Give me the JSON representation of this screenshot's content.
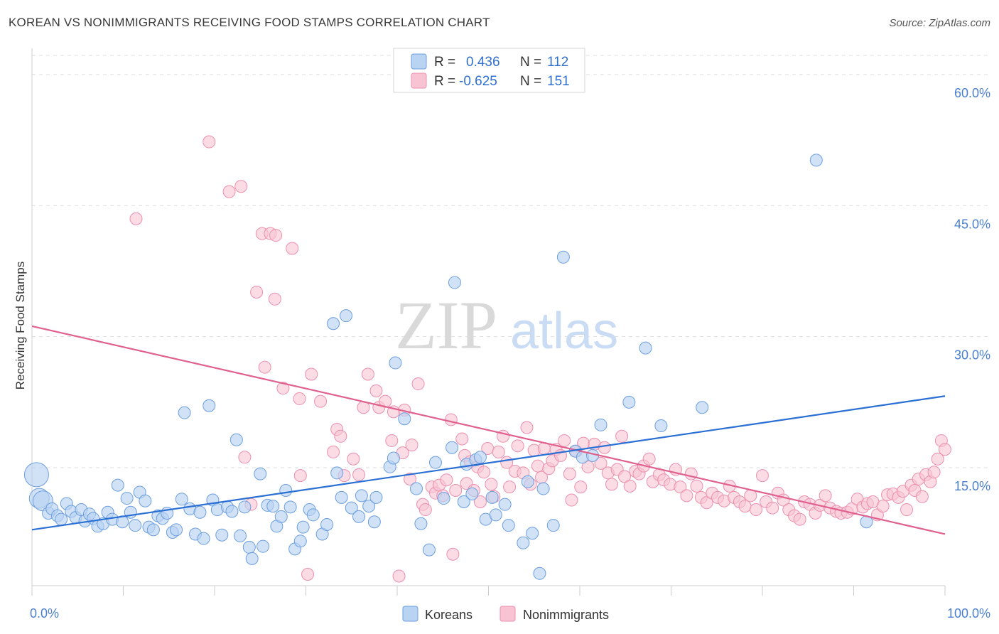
{
  "header": {
    "title": "KOREAN VS NONIMMIGRANTS RECEIVING FOOD STAMPS CORRELATION CHART",
    "source": "Source: ZipAtlas.com"
  },
  "watermark": {
    "zip": "ZIP",
    "atlas": "atlas"
  },
  "colors": {
    "koreans_fill": "#b9d3f3",
    "koreans_stroke": "#6c9fdf",
    "koreans_line": "#2a6fd4",
    "nonimm_fill": "#f8c4d4",
    "nonimm_stroke": "#ec8fae",
    "nonimm_line": "#e0608e",
    "grid": "#dddddd",
    "tick_label": "#4a7fd0"
  },
  "stats_legend": {
    "rows": [
      {
        "r_label": "R = ",
        "r_value": "0.436",
        "n_label": "N = ",
        "n_value": "112"
      },
      {
        "r_label": "R = ",
        "r_value": "-0.625",
        "n_label": "N = ",
        "n_value": "151"
      }
    ]
  },
  "chart_data": {
    "type": "scatter",
    "title": "KOREAN VS NONIMMIGRANTS RECEIVING FOOD STAMPS CORRELATION CHART",
    "xlabel": "",
    "ylabel": "Receiving Food Stamps",
    "xlim": [
      0,
      100
    ],
    "ylim": [
      1.5,
      63
    ],
    "x_tick_labels": [
      "0.0%",
      "100.0%"
    ],
    "y_ticks": [
      15,
      30,
      45,
      60
    ],
    "y_tick_labels": [
      "15.0%",
      "30.0%",
      "45.0%",
      "60.0%"
    ],
    "grid": true,
    "legend_position": "bottom-center",
    "series": [
      {
        "name": "Koreans",
        "r": 0.436,
        "n": 112,
        "trend": {
          "x": [
            0,
            100
          ],
          "y": [
            7.9,
            23.2
          ]
        },
        "points": [
          [
            0.5,
            14.2,
            3
          ],
          [
            0.8,
            11.5,
            2
          ],
          [
            1.2,
            11.2,
            2
          ],
          [
            1.8,
            9.8,
            1
          ],
          [
            2.2,
            10.3,
            1
          ],
          [
            2.8,
            9.5,
            1
          ],
          [
            3.2,
            9.1,
            1
          ],
          [
            3.8,
            10.9,
            1
          ],
          [
            4.3,
            10.0,
            1
          ],
          [
            4.8,
            9.3,
            1
          ],
          [
            5.4,
            10.2,
            1
          ],
          [
            5.8,
            8.9,
            1
          ],
          [
            6.3,
            9.7,
            1
          ],
          [
            6.7,
            9.2,
            1
          ],
          [
            7.2,
            8.3,
            1
          ],
          [
            7.8,
            8.6,
            1
          ],
          [
            8.3,
            9.9,
            1
          ],
          [
            8.8,
            9.1,
            1
          ],
          [
            9.4,
            13.0,
            1
          ],
          [
            9.9,
            8.8,
            1
          ],
          [
            10.4,
            11.5,
            1
          ],
          [
            10.8,
            9.9,
            1
          ],
          [
            11.3,
            8.4,
            1
          ],
          [
            11.8,
            12.2,
            1
          ],
          [
            12.4,
            11.2,
            1
          ],
          [
            12.8,
            8.2,
            1
          ],
          [
            13.3,
            7.9,
            1
          ],
          [
            13.8,
            9.5,
            1
          ],
          [
            14.3,
            9.2,
            1
          ],
          [
            14.8,
            9.8,
            1
          ],
          [
            15.4,
            7.6,
            1
          ],
          [
            15.8,
            7.9,
            1
          ],
          [
            16.4,
            11.4,
            1
          ],
          [
            16.7,
            21.3,
            1
          ],
          [
            17.3,
            10.3,
            1
          ],
          [
            17.9,
            7.4,
            1
          ],
          [
            18.4,
            9.9,
            1
          ],
          [
            18.8,
            6.9,
            1
          ],
          [
            19.4,
            22.1,
            1
          ],
          [
            19.8,
            11.3,
            1
          ],
          [
            20.3,
            10.2,
            1
          ],
          [
            20.8,
            7.3,
            1
          ],
          [
            21.4,
            10.5,
            1
          ],
          [
            21.9,
            10.0,
            1
          ],
          [
            22.4,
            18.2,
            1
          ],
          [
            22.8,
            7.2,
            1
          ],
          [
            23.3,
            10.5,
            1
          ],
          [
            23.8,
            5.9,
            1
          ],
          [
            24.1,
            4.6,
            1
          ],
          [
            25.0,
            14.3,
            1
          ],
          [
            25.3,
            6.0,
            1
          ],
          [
            25.8,
            10.7,
            1
          ],
          [
            26.4,
            10.6,
            1
          ],
          [
            26.8,
            8.3,
            1
          ],
          [
            27.3,
            9.4,
            1
          ],
          [
            27.8,
            12.4,
            1
          ],
          [
            28.3,
            10.5,
            1
          ],
          [
            28.8,
            5.7,
            1
          ],
          [
            29.4,
            6.6,
            1
          ],
          [
            29.7,
            8.2,
            1
          ],
          [
            30.4,
            10.2,
            1
          ],
          [
            30.8,
            9.6,
            1
          ],
          [
            31.8,
            7.4,
            1
          ],
          [
            32.3,
            8.5,
            1
          ],
          [
            33.0,
            31.5,
            1
          ],
          [
            33.4,
            14.4,
            1
          ],
          [
            33.9,
            11.6,
            1
          ],
          [
            34.4,
            32.4,
            1
          ],
          [
            35.0,
            10.4,
            1
          ],
          [
            35.8,
            9.4,
            1
          ],
          [
            36.1,
            11.8,
            1
          ],
          [
            36.9,
            10.6,
            1
          ],
          [
            37.5,
            8.8,
            1
          ],
          [
            37.7,
            11.6,
            1
          ],
          [
            39.2,
            15.1,
            1
          ],
          [
            39.6,
            16.1,
            1
          ],
          [
            39.8,
            27.0,
            1
          ],
          [
            40.8,
            20.6,
            1
          ],
          [
            42.1,
            12.6,
            1
          ],
          [
            42.6,
            8.6,
            1
          ],
          [
            43.5,
            5.6,
            1
          ],
          [
            44.2,
            15.6,
            1
          ],
          [
            45.1,
            11.5,
            1
          ],
          [
            46.0,
            17.3,
            1
          ],
          [
            46.3,
            36.2,
            1
          ],
          [
            47.3,
            11.1,
            1
          ],
          [
            47.6,
            15.4,
            1
          ],
          [
            48.2,
            12.0,
            1
          ],
          [
            48.6,
            15.9,
            1
          ],
          [
            49.1,
            16.2,
            1
          ],
          [
            49.7,
            9.1,
            1
          ],
          [
            50.4,
            11.6,
            1
          ],
          [
            50.8,
            9.6,
            1
          ],
          [
            51.8,
            10.8,
            1
          ],
          [
            52.2,
            8.4,
            1
          ],
          [
            53.8,
            6.4,
            1
          ],
          [
            54.3,
            13.4,
            1
          ],
          [
            54.8,
            7.5,
            1
          ],
          [
            55.6,
            2.9,
            1
          ],
          [
            56.0,
            12.6,
            1
          ],
          [
            57.1,
            8.4,
            1
          ],
          [
            58.2,
            39.1,
            1
          ],
          [
            59.5,
            16.9,
            1
          ],
          [
            60.3,
            16.2,
            1
          ],
          [
            61.4,
            16.4,
            1
          ],
          [
            62.3,
            19.9,
            1
          ],
          [
            65.4,
            22.5,
            1
          ],
          [
            67.2,
            28.7,
            1
          ],
          [
            68.9,
            19.8,
            1
          ],
          [
            73.4,
            21.9,
            1
          ],
          [
            85.9,
            50.2,
            1
          ],
          [
            91.4,
            8.8,
            1
          ]
        ]
      },
      {
        "name": "Nonimmigrants",
        "r": -0.625,
        "n": 151,
        "trend": {
          "x": [
            0,
            100
          ],
          "y": [
            31.2,
            7.4
          ]
        },
        "points": [
          [
            11.4,
            43.5
          ],
          [
            19.4,
            52.3
          ],
          [
            21.6,
            46.6
          ],
          [
            22.9,
            47.2
          ],
          [
            23.3,
            16.2
          ],
          [
            24.0,
            10.8
          ],
          [
            24.6,
            35.1
          ],
          [
            25.2,
            41.8
          ],
          [
            25.5,
            26.5
          ],
          [
            26.1,
            41.8
          ],
          [
            26.6,
            34.3
          ],
          [
            26.7,
            41.6
          ],
          [
            27.5,
            24.1
          ],
          [
            28.5,
            40.1
          ],
          [
            29.3,
            22.9
          ],
          [
            29.4,
            14.1
          ],
          [
            30.2,
            2.8
          ],
          [
            30.6,
            25.7
          ],
          [
            31.6,
            22.6
          ],
          [
            33.0,
            16.8
          ],
          [
            33.4,
            19.4
          ],
          [
            33.8,
            18.6
          ],
          [
            34.2,
            14.1
          ],
          [
            35.2,
            16.0
          ],
          [
            35.8,
            14.2
          ],
          [
            36.3,
            21.9
          ],
          [
            36.8,
            25.7
          ],
          [
            37.7,
            23.8
          ],
          [
            38.0,
            21.9
          ],
          [
            38.7,
            22.6
          ],
          [
            39.4,
            18.1
          ],
          [
            39.6,
            21.4
          ],
          [
            40.2,
            2.6
          ],
          [
            40.6,
            16.7
          ],
          [
            40.8,
            21.6
          ],
          [
            41.4,
            13.7
          ],
          [
            41.6,
            17.6
          ],
          [
            42.3,
            24.6
          ],
          [
            42.8,
            10.8
          ],
          [
            43.1,
            10.2
          ],
          [
            43.8,
            12.8
          ],
          [
            44.2,
            12.1
          ],
          [
            44.6,
            13.0
          ],
          [
            45.0,
            11.8
          ],
          [
            45.4,
            13.6
          ],
          [
            45.9,
            20.5
          ],
          [
            46.1,
            5.1
          ],
          [
            46.4,
            12.4
          ],
          [
            47.1,
            18.3
          ],
          [
            47.4,
            16.4
          ],
          [
            47.6,
            13.2
          ],
          [
            48.0,
            15.7
          ],
          [
            48.4,
            12.4
          ],
          [
            48.8,
            15.1
          ],
          [
            49.1,
            11.1
          ],
          [
            49.5,
            14.5
          ],
          [
            49.9,
            17.2
          ],
          [
            50.3,
            13.1
          ],
          [
            50.6,
            11.7
          ],
          [
            51.1,
            16.8
          ],
          [
            51.6,
            18.6
          ],
          [
            52.0,
            15.6
          ],
          [
            52.3,
            12.8
          ],
          [
            52.9,
            14.6
          ],
          [
            53.2,
            17.5
          ],
          [
            53.8,
            14.4
          ],
          [
            54.2,
            19.6
          ],
          [
            54.6,
            13.1
          ],
          [
            55.0,
            17.0
          ],
          [
            55.4,
            15.2
          ],
          [
            55.8,
            13.9
          ],
          [
            56.1,
            17.2
          ],
          [
            56.6,
            14.9
          ],
          [
            57.0,
            15.8
          ],
          [
            57.4,
            17.1
          ],
          [
            57.9,
            16.4
          ],
          [
            58.3,
            18.1
          ],
          [
            58.9,
            14.3
          ],
          [
            59.1,
            11.3
          ],
          [
            59.6,
            16.9
          ],
          [
            60.1,
            12.8
          ],
          [
            60.4,
            17.8
          ],
          [
            60.9,
            15.1
          ],
          [
            61.6,
            17.7
          ],
          [
            62.3,
            15.5
          ],
          [
            62.7,
            17.3
          ],
          [
            63.1,
            14.4
          ],
          [
            63.5,
            13.1
          ],
          [
            64.1,
            14.8
          ],
          [
            64.6,
            18.6
          ],
          [
            64.9,
            14.0
          ],
          [
            65.5,
            12.9
          ],
          [
            66.1,
            14.6
          ],
          [
            66.5,
            14.3
          ],
          [
            67.0,
            15.2
          ],
          [
            67.6,
            16.0
          ],
          [
            68.0,
            13.4
          ],
          [
            68.7,
            14.2
          ],
          [
            69.2,
            13.6
          ],
          [
            69.9,
            13.1
          ],
          [
            70.5,
            14.8
          ],
          [
            71.0,
            12.8
          ],
          [
            71.7,
            11.8
          ],
          [
            72.2,
            14.3
          ],
          [
            72.8,
            12.9
          ],
          [
            73.3,
            11.6
          ],
          [
            73.9,
            11.0
          ],
          [
            74.5,
            12.1
          ],
          [
            75.1,
            11.6
          ],
          [
            75.8,
            11.2
          ],
          [
            76.4,
            12.9
          ],
          [
            76.9,
            11.6
          ],
          [
            77.5,
            11.1
          ],
          [
            78.1,
            10.6
          ],
          [
            78.7,
            11.8
          ],
          [
            79.3,
            10.2
          ],
          [
            80.0,
            14.1
          ],
          [
            80.4,
            11.1
          ],
          [
            81.1,
            10.4
          ],
          [
            81.7,
            12.1
          ],
          [
            82.3,
            11.3
          ],
          [
            82.9,
            10.2
          ],
          [
            83.5,
            9.5
          ],
          [
            84.1,
            9.1
          ],
          [
            84.6,
            11.1
          ],
          [
            85.2,
            10.8
          ],
          [
            85.8,
            9.8
          ],
          [
            86.3,
            10.7
          ],
          [
            86.9,
            11.8
          ],
          [
            87.4,
            10.4
          ],
          [
            88.1,
            10.0
          ],
          [
            88.6,
            9.8
          ],
          [
            89.3,
            9.9
          ],
          [
            89.8,
            10.3
          ],
          [
            90.4,
            11.4
          ],
          [
            91.0,
            10.5
          ],
          [
            91.5,
            10.9
          ],
          [
            92.1,
            11.1
          ],
          [
            92.6,
            9.6
          ],
          [
            93.2,
            10.6
          ],
          [
            93.7,
            11.9
          ],
          [
            94.3,
            12.0
          ],
          [
            94.9,
            11.6
          ],
          [
            95.4,
            12.3
          ],
          [
            95.8,
            10.2
          ],
          [
            96.3,
            13.0
          ],
          [
            96.7,
            12.4
          ],
          [
            97.1,
            13.7
          ],
          [
            97.5,
            11.7
          ],
          [
            97.9,
            14.2
          ],
          [
            98.4,
            13.4
          ],
          [
            98.8,
            14.5
          ],
          [
            99.2,
            16.0
          ],
          [
            99.6,
            18.1
          ],
          [
            100.0,
            17.1
          ]
        ]
      }
    ]
  },
  "bottom_legend": {
    "items": [
      "Koreans",
      "Nonimmigrants"
    ]
  }
}
